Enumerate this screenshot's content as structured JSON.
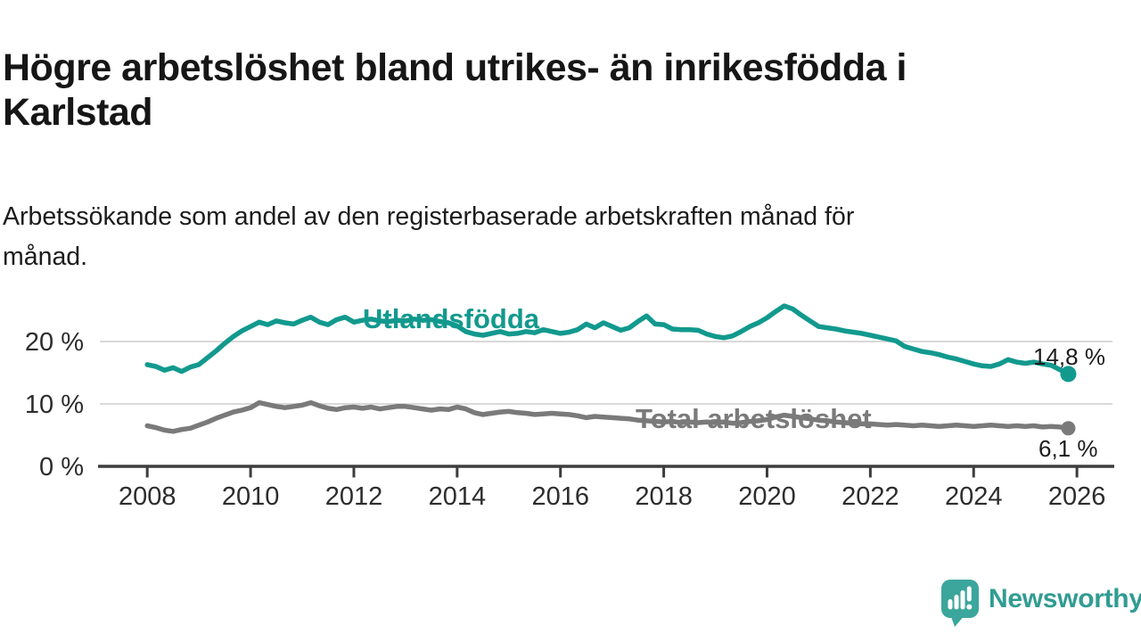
{
  "header": {
    "title": "Högre arbetslöshet bland utrikes- än inrikesfödda i Karlstad",
    "subtitle": "Arbetssökande som andel av den registerbaserade arbetskraften månad för månad."
  },
  "chart_data": {
    "type": "line",
    "title": "Högre arbetslöshet bland utrikes- än inrikesfödda i Karlstad",
    "subtitle": "Arbetssökande som andel av den registerbaserade arbetskraften månad för månad.",
    "x_axis": {
      "unit": "year",
      "start_year": 2008.0,
      "points_per_year": 6,
      "end_year": 2025.83,
      "tick_values": [
        2008,
        2010,
        2012,
        2014,
        2016,
        2018,
        2020,
        2022,
        2024,
        2026
      ],
      "tick_labels": [
        "2008",
        "2010",
        "2012",
        "2014",
        "2016",
        "2018",
        "2020",
        "2022",
        "2024",
        "2026"
      ]
    },
    "y_axis": {
      "unit": "%",
      "range": [
        0,
        26
      ],
      "grid": true,
      "ticks": [
        {
          "value": 0,
          "label": "0 %"
        },
        {
          "value": 10,
          "label": "10 %"
        },
        {
          "value": 20,
          "label": "20 %"
        }
      ]
    },
    "series": [
      {
        "name": "Utlandsfödda",
        "color": "#12998e",
        "end_label": "14,8 %",
        "end_value": 14.8,
        "values": [
          16.3,
          16.0,
          15.4,
          15.8,
          15.2,
          15.9,
          16.3,
          17.4,
          18.5,
          19.7,
          20.8,
          21.7,
          22.4,
          23.1,
          22.7,
          23.3,
          23.0,
          22.8,
          23.4,
          23.9,
          23.1,
          22.7,
          23.5,
          23.9,
          23.1,
          23.4,
          23.6,
          23.3,
          23.2,
          23.4,
          23.3,
          23.6,
          23.4,
          23.5,
          23.2,
          23.0,
          22.5,
          21.6,
          21.2,
          21.0,
          21.3,
          21.6,
          21.2,
          21.3,
          21.6,
          21.4,
          21.9,
          21.6,
          21.3,
          21.5,
          21.9,
          22.8,
          22.2,
          23.0,
          22.4,
          21.8,
          22.2,
          23.2,
          24.1,
          22.8,
          22.7,
          22.0,
          21.9,
          21.9,
          21.8,
          21.2,
          20.8,
          20.6,
          20.9,
          21.6,
          22.4,
          23.0,
          23.8,
          24.8,
          25.7,
          25.2,
          24.2,
          23.3,
          22.4,
          22.2,
          22.0,
          21.7,
          21.5,
          21.3,
          21.0,
          20.7,
          20.4,
          20.1,
          19.2,
          18.8,
          18.4,
          18.2,
          17.9,
          17.5,
          17.2,
          16.8,
          16.4,
          16.1,
          16.0,
          16.4,
          17.1,
          16.7,
          16.5,
          16.7,
          16.4,
          16.2,
          15.5,
          14.8
        ]
      },
      {
        "name": "Total arbetslöshet",
        "color": "#7a7a7a",
        "end_label": "6,1 %",
        "end_value": 6.1,
        "values": [
          6.5,
          6.2,
          5.8,
          5.6,
          5.9,
          6.1,
          6.6,
          7.1,
          7.7,
          8.2,
          8.7,
          9.0,
          9.4,
          10.2,
          9.9,
          9.6,
          9.4,
          9.6,
          9.8,
          10.2,
          9.7,
          9.3,
          9.1,
          9.4,
          9.5,
          9.3,
          9.5,
          9.2,
          9.4,
          9.6,
          9.6,
          9.4,
          9.2,
          9.0,
          9.2,
          9.1,
          9.5,
          9.2,
          8.6,
          8.3,
          8.5,
          8.7,
          8.8,
          8.6,
          8.5,
          8.3,
          8.4,
          8.5,
          8.4,
          8.3,
          8.1,
          7.8,
          8.0,
          7.9,
          7.8,
          7.7,
          7.6,
          7.4,
          7.3,
          7.2,
          7.1,
          7.2,
          7.0,
          7.1,
          7.0,
          7.1,
          7.0,
          7.1,
          6.9,
          7.0,
          7.2,
          7.3,
          7.5,
          7.9,
          8.2,
          8.0,
          7.8,
          7.6,
          7.4,
          7.3,
          7.1,
          7.0,
          6.9,
          6.8,
          6.8,
          6.7,
          6.6,
          6.7,
          6.6,
          6.5,
          6.6,
          6.5,
          6.4,
          6.5,
          6.6,
          6.5,
          6.4,
          6.5,
          6.6,
          6.5,
          6.4,
          6.5,
          6.4,
          6.5,
          6.3,
          6.4,
          6.3,
          6.1
        ]
      }
    ],
    "colors": {
      "grid": "#d9d9d9",
      "axis": "#3d3d3d",
      "axis_text": "#2d2d2d",
      "value_label_text": "#1c1c1c"
    }
  },
  "footer": {
    "brand": "Newsworthy",
    "brand_color": "#319c92",
    "brand_icon": "speech-bubble-bar-chart"
  }
}
